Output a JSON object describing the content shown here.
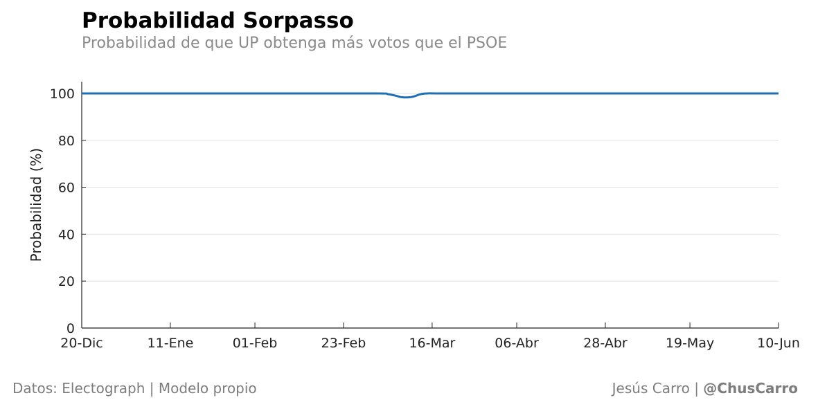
{
  "header": {
    "title": "Probabilidad Sorpasso",
    "subtitle": "Probabilidad de que UP obtenga más votos que el PSOE"
  },
  "footer": {
    "source": "Datos: Electograph | Modelo propio",
    "author": "Jesús Carro | ",
    "handle": "@ChusCarro"
  },
  "chart_data": {
    "type": "line",
    "ylabel": "Probabilidad (%)",
    "xlabel": "",
    "ylim": [
      0,
      105
    ],
    "yticks": [
      0,
      20,
      40,
      60,
      80,
      100
    ],
    "x_tick_labels": [
      "20-Dic",
      "11-Ene",
      "01-Feb",
      "23-Feb",
      "16-Mar",
      "06-Abr",
      "28-Abr",
      "19-May",
      "10-Jun"
    ],
    "x_tick_days": [
      0,
      22,
      43,
      65,
      87,
      108,
      130,
      151,
      173
    ],
    "xlim_days": [
      0,
      173
    ],
    "grid": "horizontal",
    "series": [
      {
        "color": "#1f6fb5",
        "x_days": [
          0,
          20,
          40,
          60,
          74,
          76,
          78,
          79,
          80,
          81,
          82,
          83,
          84,
          85,
          86,
          88,
          100,
          130,
          173
        ],
        "values": [
          100,
          100,
          100,
          100,
          100,
          99.7,
          99.0,
          98.5,
          98.3,
          98.3,
          98.5,
          99.0,
          99.6,
          99.9,
          100,
          100,
          100,
          100,
          100
        ]
      }
    ]
  }
}
